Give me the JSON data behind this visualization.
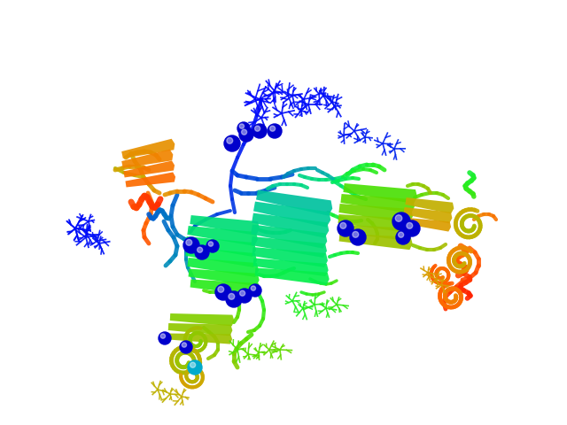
{
  "background_color": "#ffffff",
  "figure_width": 6.4,
  "figure_height": 4.8,
  "dpi": 100,
  "rainbow_colors": [
    "#0000ff",
    "#0022ee",
    "#0044dd",
    "#0066cc",
    "#0088bb",
    "#00aaaa",
    "#00cc99",
    "#00dd77",
    "#00ee55",
    "#22ee22",
    "#55dd00",
    "#88cc00",
    "#aabb00",
    "#ccaa00",
    "#ee8800",
    "#ff6600",
    "#ff4400",
    "#ff2200",
    "#ff0000"
  ],
  "seed": 12345
}
